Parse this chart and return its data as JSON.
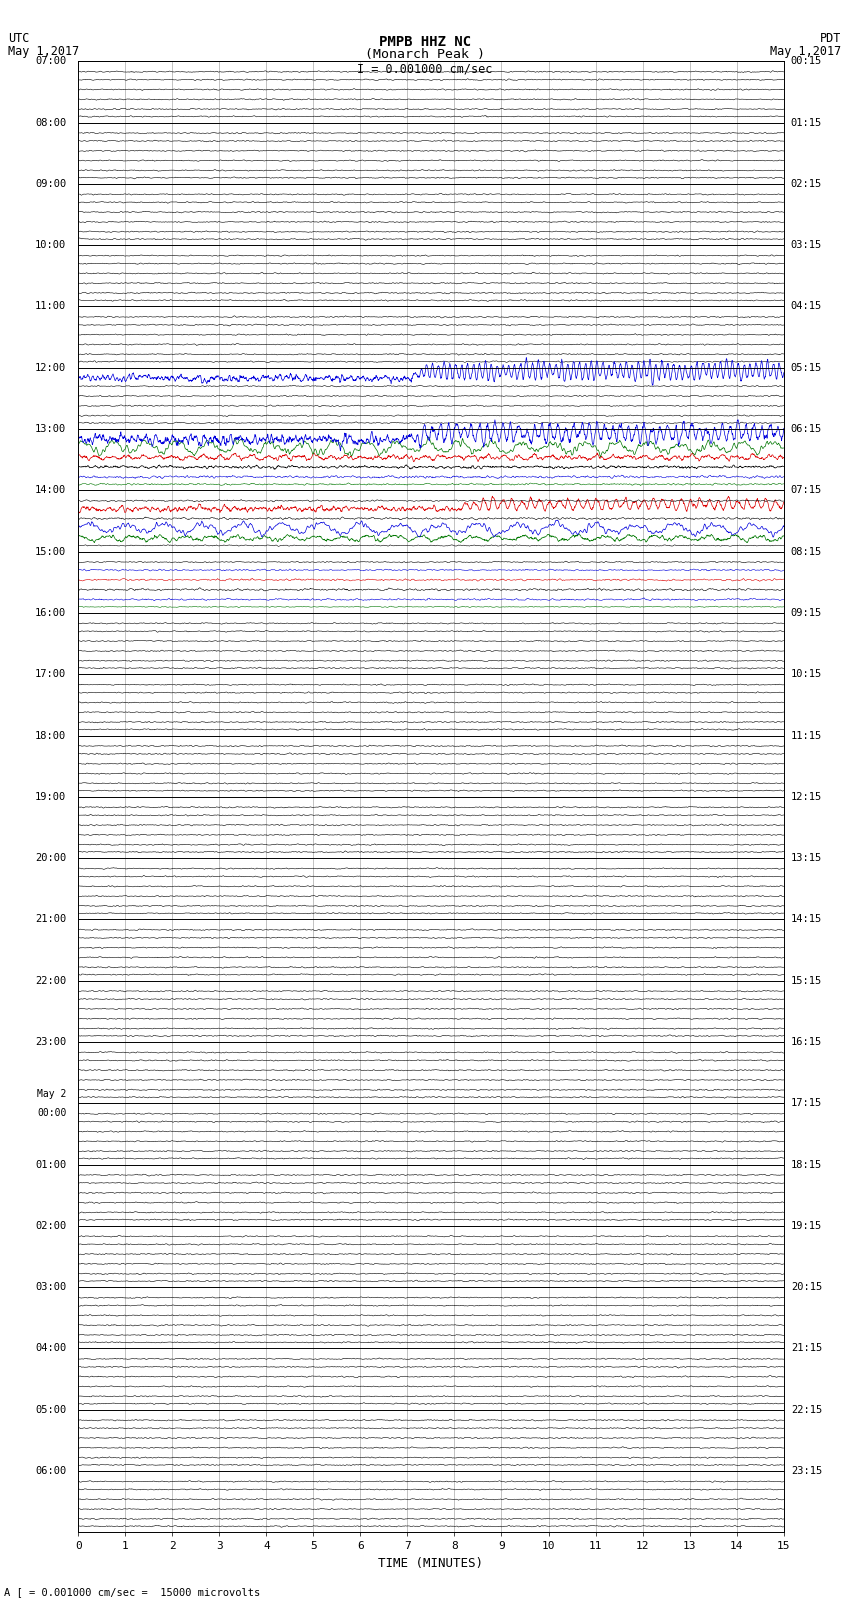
{
  "title_line1": "PMPB HHZ NC",
  "title_line2": "(Monarch Peak )",
  "scale_label": "I = 0.001000 cm/sec",
  "bottom_label": "A [ = 0.001000 cm/sec =  15000 microvolts",
  "xlabel": "TIME (MINUTES)",
  "num_rows": 24,
  "display_minutes": 15,
  "background_color": "#ffffff",
  "grid_color": "#aaaaaa",
  "line_color": "#000000",
  "trace_color_black": "#000000",
  "trace_color_blue": "#0000dd",
  "trace_color_red": "#dd0000",
  "trace_color_green": "#007700",
  "fig_width": 8.5,
  "fig_height": 16.13,
  "left_label_utc_times": [
    "07:00",
    "08:00",
    "09:00",
    "10:00",
    "11:00",
    "12:00",
    "13:00",
    "14:00",
    "15:00",
    "16:00",
    "17:00",
    "18:00",
    "19:00",
    "20:00",
    "21:00",
    "22:00",
    "23:00",
    "May 2\n00:00",
    "01:00",
    "02:00",
    "03:00",
    "04:00",
    "05:00",
    "06:00"
  ],
  "right_label_pdt_times": [
    "00:15",
    "01:15",
    "02:15",
    "03:15",
    "04:15",
    "05:15",
    "06:15",
    "07:15",
    "08:15",
    "09:15",
    "10:15",
    "11:15",
    "12:15",
    "13:15",
    "14:15",
    "15:15",
    "16:15",
    "17:15",
    "18:15",
    "19:15",
    "20:15",
    "21:15",
    "22:15",
    "23:15"
  ]
}
